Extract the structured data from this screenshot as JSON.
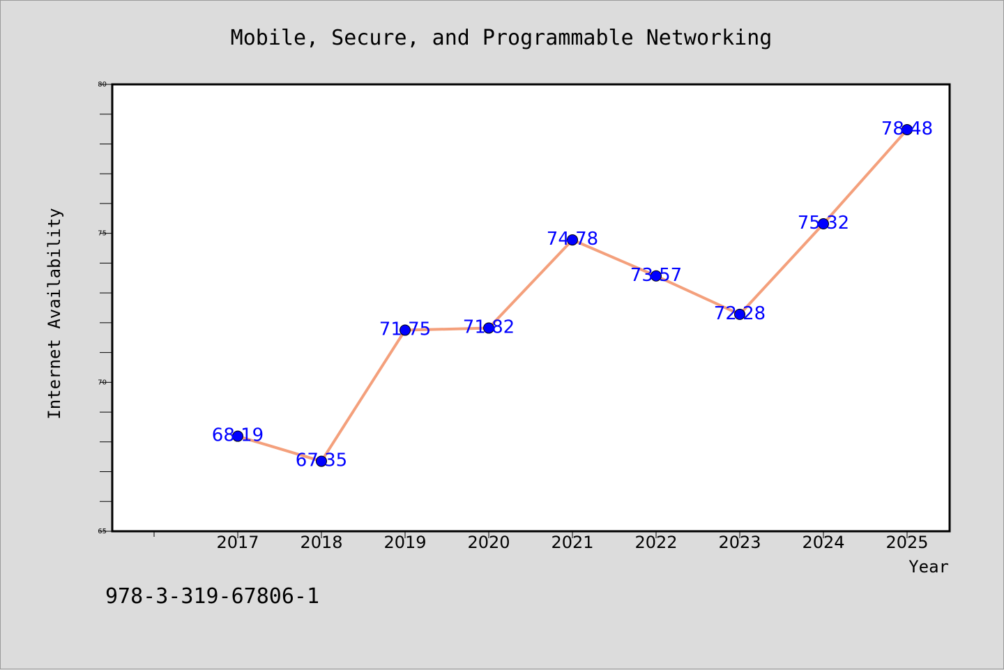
{
  "chart_data": {
    "type": "line",
    "title": "Mobile, Secure, and Programmable Networking",
    "xlabel": "Year",
    "ylabel": "Internet Availability",
    "categories": [
      "2017",
      "2018",
      "2019",
      "2020",
      "2021",
      "2022",
      "2023",
      "2024",
      "2025"
    ],
    "series": [
      {
        "values": [
          68.19,
          67.35,
          71.75,
          71.82,
          74.78,
          73.57,
          72.28,
          75.32,
          78.48
        ],
        "data_labels": [
          "68.19",
          "67.35",
          "71.75",
          "71.82",
          "74.78",
          "73.57",
          "72.28",
          "75.32",
          "78.48"
        ],
        "line_color": "#f4a07c",
        "marker_color": "#0000ff",
        "label_color": "#0000ff"
      }
    ],
    "ylim": [
      65,
      80
    ],
    "y_ticks": [
      "65",
      "70",
      "75",
      "80"
    ],
    "grid": false,
    "legend": "none"
  },
  "footer": {
    "isbn": "978-3-319-67806-1"
  }
}
